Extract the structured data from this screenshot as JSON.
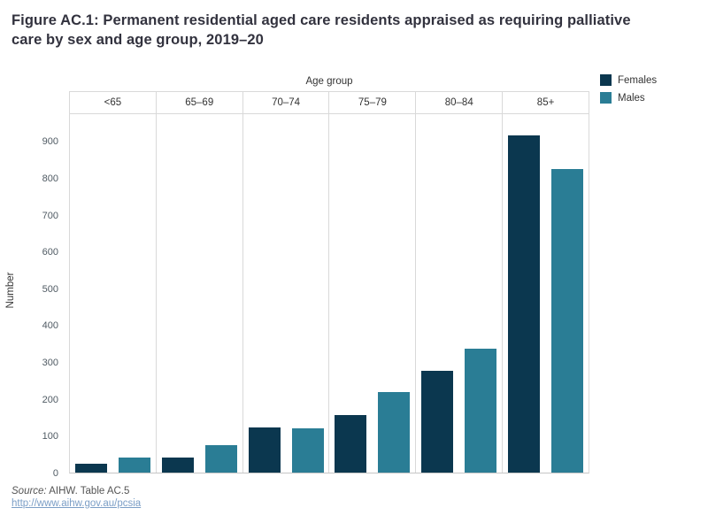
{
  "title": "Figure AC.1: Permanent residential aged care residents appraised as requiring palliative care by sex and age group, 2019–20",
  "chart_data": {
    "type": "bar",
    "title": "Figure AC.1: Permanent residential aged care residents appraised as requiring palliative care by sex and age group, 2019–20",
    "xlabel": "Age group",
    "ylabel": "Number",
    "categories": [
      "<65",
      "65–69",
      "70–74",
      "75–79",
      "80–84",
      "85+"
    ],
    "series": [
      {
        "name": "Females",
        "color": "#0b374f",
        "values": [
          25,
          40,
          122,
          156,
          277,
          918
        ]
      },
      {
        "name": "Males",
        "color": "#2a7d95",
        "values": [
          40,
          75,
          121,
          218,
          337,
          825
        ]
      }
    ],
    "yticks": [
      0,
      100,
      200,
      300,
      400,
      500,
      600,
      700,
      800,
      900
    ],
    "ylim": [
      0,
      975
    ],
    "grid": "vertical-column-separators-only",
    "legend_position": "top-right"
  },
  "legend": {
    "items": [
      {
        "label": "Females",
        "color": "#0b374f"
      },
      {
        "label": "Males",
        "color": "#2a7d95"
      }
    ]
  },
  "footer": {
    "source_prefix": "Source:",
    "source_text": " AIHW. Table AC.5",
    "link_text": "http://www.aihw.gov.au/pcsia"
  }
}
